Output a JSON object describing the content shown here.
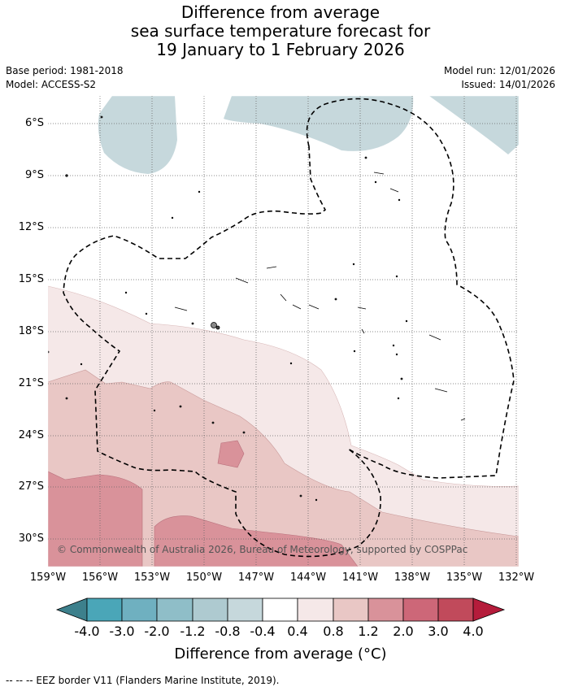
{
  "title_lines": [
    "Difference from average",
    "sea surface temperature forecast for",
    "19 January to 1 February 2026"
  ],
  "base_period": "Base period: 1981-2018",
  "model": "Model: ACCESS-S2",
  "model_run": "Model run: 12/01/2026",
  "issued": "Issued: 14/01/2026",
  "lat_labels": [
    "6°S",
    "9°S",
    "12°S",
    "15°S",
    "18°S",
    "21°S",
    "24°S",
    "27°S",
    "30°S"
  ],
  "lon_labels": [
    "159°W",
    "156°W",
    "153°W",
    "150°W",
    "147°W",
    "144°W",
    "141°W",
    "138°W",
    "135°W",
    "132°W"
  ],
  "copyright": "© Commonwealth of Australia 2026, Bureau of Meteorology, supported by COSPPac",
  "colorbar": {
    "ticks": [
      "-4.0",
      "-3.0",
      "-2.0",
      "-1.2",
      "-0.8",
      "-0.4",
      "0.4",
      "0.8",
      "1.2",
      "2.0",
      "3.0",
      "4.0"
    ],
    "colors": [
      "#3d808c",
      "#4aa6b8",
      "#6fb0c0",
      "#8fbec8",
      "#aecad0",
      "#c6d8dc",
      "#ffffff",
      "#f5e8e8",
      "#e9c7c5",
      "#d9929a",
      "#cd6778",
      "#c14a5b",
      "#b51c3b"
    ],
    "title": "Difference from average (°C)"
  },
  "footer": "--  --  -- EEZ border V11 (Flanders Marine Institute, 2019)."
}
